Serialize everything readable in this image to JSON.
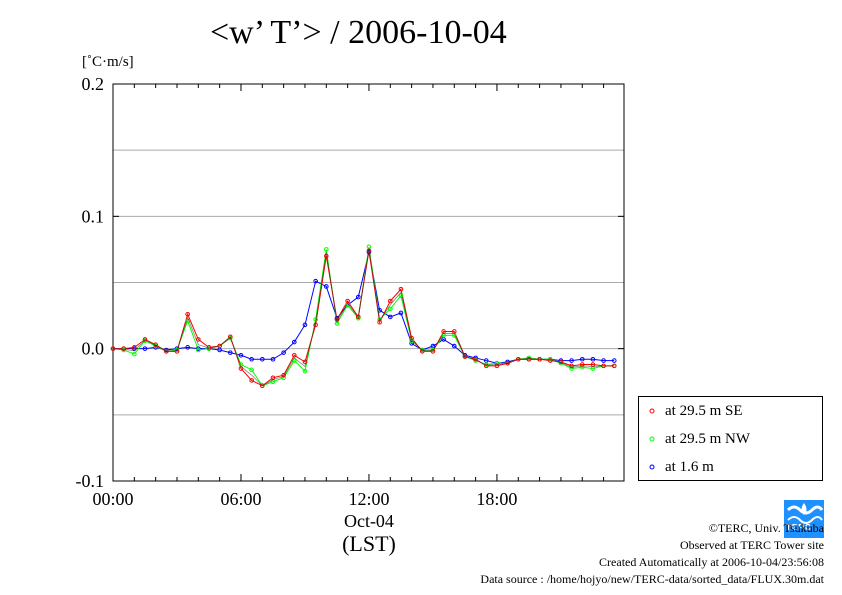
{
  "title": "<w’ T’> / 2006-10-04",
  "unit_label": "[˚C·m/s]",
  "legend": [
    {
      "label": "at 29.5 m SE",
      "color": "#ff0000"
    },
    {
      "label": "at 29.5 m NW",
      "color": "#00ff00"
    },
    {
      "label": "at 1.6 m",
      "color": "#0000ff"
    }
  ],
  "credits": {
    "copyright": "©TERC, Univ. Tsukuba",
    "site": "Observed at TERC Tower site",
    "created": "Created Automatically at 2006-10-04/23:56:08",
    "source": "Data source : /home/hojyo/new/TERC-data/sorted_data/FLUX.30m.dat"
  },
  "logo_text": "TERC",
  "chart_data": {
    "type": "line",
    "title": "<w’ T’> / 2006-10-04",
    "ylabel": "[˚C·m/s]",
    "xlabel": "(LST)",
    "xlabel_date": "Oct-04",
    "xlim": [
      0,
      23.5
    ],
    "ylim": [
      -0.1,
      0.2
    ],
    "yticks": [
      -0.1,
      0.0,
      0.1,
      0.2
    ],
    "ytick_labels": [
      "-0.1",
      "0.0",
      "0.1",
      "0.2"
    ],
    "xticks": [
      0,
      6,
      12,
      18
    ],
    "xtick_labels": [
      "00:00",
      "06:00",
      "12:00",
      "18:00"
    ],
    "grid": "horizontal",
    "legend_position": "bottom-right outside",
    "x": [
      0,
      0.5,
      1,
      1.5,
      2,
      2.5,
      3,
      3.5,
      4,
      4.5,
      5,
      5.5,
      6,
      6.5,
      7,
      7.5,
      8,
      8.5,
      9,
      9.5,
      10,
      10.5,
      11,
      11.5,
      12,
      12.5,
      13,
      13.5,
      14,
      14.5,
      15,
      15.5,
      16,
      16.5,
      17,
      17.5,
      18,
      18.5,
      19,
      19.5,
      20,
      20.5,
      21,
      21.5,
      22,
      22.5,
      23,
      23.5
    ],
    "series": [
      {
        "name": "at 29.5 m SE",
        "color": "#ff0000",
        "values": [
          0.0,
          0.0,
          0.001,
          0.007,
          0.003,
          -0.002,
          -0.002,
          0.026,
          0.007,
          0.001,
          0.002,
          0.009,
          -0.015,
          -0.024,
          -0.028,
          -0.022,
          -0.02,
          -0.005,
          -0.01,
          0.018,
          0.07,
          0.022,
          0.036,
          0.024,
          0.074,
          0.02,
          0.036,
          0.045,
          0.008,
          -0.002,
          -0.002,
          0.013,
          0.013,
          -0.006,
          -0.008,
          -0.013,
          -0.013,
          -0.011,
          -0.008,
          -0.008,
          -0.008,
          -0.009,
          -0.01,
          -0.013,
          -0.012,
          -0.012,
          -0.013,
          -0.013
        ]
      },
      {
        "name": "at 29.5 m NW",
        "color": "#00ff00",
        "values": [
          0.0,
          -0.001,
          -0.004,
          0.006,
          0.002,
          -0.002,
          -0.001,
          0.021,
          -0.001,
          0.0,
          0.002,
          0.008,
          -0.012,
          -0.016,
          -0.028,
          -0.025,
          -0.022,
          -0.009,
          -0.017,
          0.022,
          0.075,
          0.019,
          0.033,
          0.023,
          0.077,
          0.022,
          0.03,
          0.04,
          0.006,
          -0.001,
          -0.001,
          0.01,
          0.01,
          -0.006,
          -0.009,
          -0.012,
          -0.011,
          -0.011,
          -0.008,
          -0.007,
          -0.008,
          -0.008,
          -0.011,
          -0.015,
          -0.014,
          -0.015,
          -0.013,
          -0.013
        ]
      },
      {
        "name": "at 1.6 m",
        "color": "#0000ff",
        "values": [
          0.0,
          0.0,
          0.0,
          0.0,
          0.001,
          -0.001,
          0.0,
          0.001,
          0.0,
          0.0,
          -0.001,
          -0.003,
          -0.005,
          -0.008,
          -0.008,
          -0.008,
          -0.003,
          0.005,
          0.018,
          0.051,
          0.047,
          0.023,
          0.033,
          0.039,
          0.073,
          0.029,
          0.024,
          0.027,
          0.004,
          -0.001,
          0.002,
          0.007,
          0.002,
          -0.005,
          -0.007,
          -0.009,
          -0.011,
          -0.01,
          -0.008,
          -0.008,
          -0.008,
          -0.008,
          -0.009,
          -0.009,
          -0.008,
          -0.008,
          -0.009,
          -0.009
        ]
      }
    ]
  }
}
